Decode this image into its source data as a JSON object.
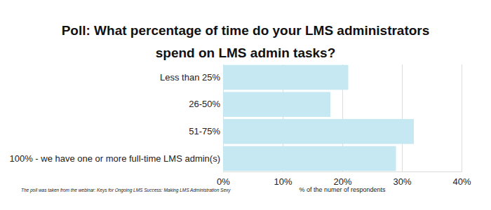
{
  "chart_data": {
    "type": "bar",
    "orientation": "horizontal",
    "title": "Poll: What percentage of time do your LMS administrators spend on LMS admin tasks?",
    "categories": [
      "Less than 25%",
      "26-50%",
      "51-75%",
      "100% - we have one or more full-time LMS admin(s)"
    ],
    "values": [
      21,
      18,
      32,
      29
    ],
    "color": "#c5e8f2",
    "xlim": [
      0,
      40
    ],
    "xticks": [
      {
        "value": 0,
        "label": "0%"
      },
      {
        "value": 10,
        "label": "10%"
      },
      {
        "value": 20,
        "label": "20%"
      },
      {
        "value": 30,
        "label": "30%"
      },
      {
        "value": 40,
        "label": "40%"
      }
    ],
    "xlabel": "% of the numer of respondents",
    "annotations": [
      "The poll was taken from the webinar: Keys for Ongoing LMS Success: Making LMS Administration Sexy"
    ],
    "grid": true
  }
}
